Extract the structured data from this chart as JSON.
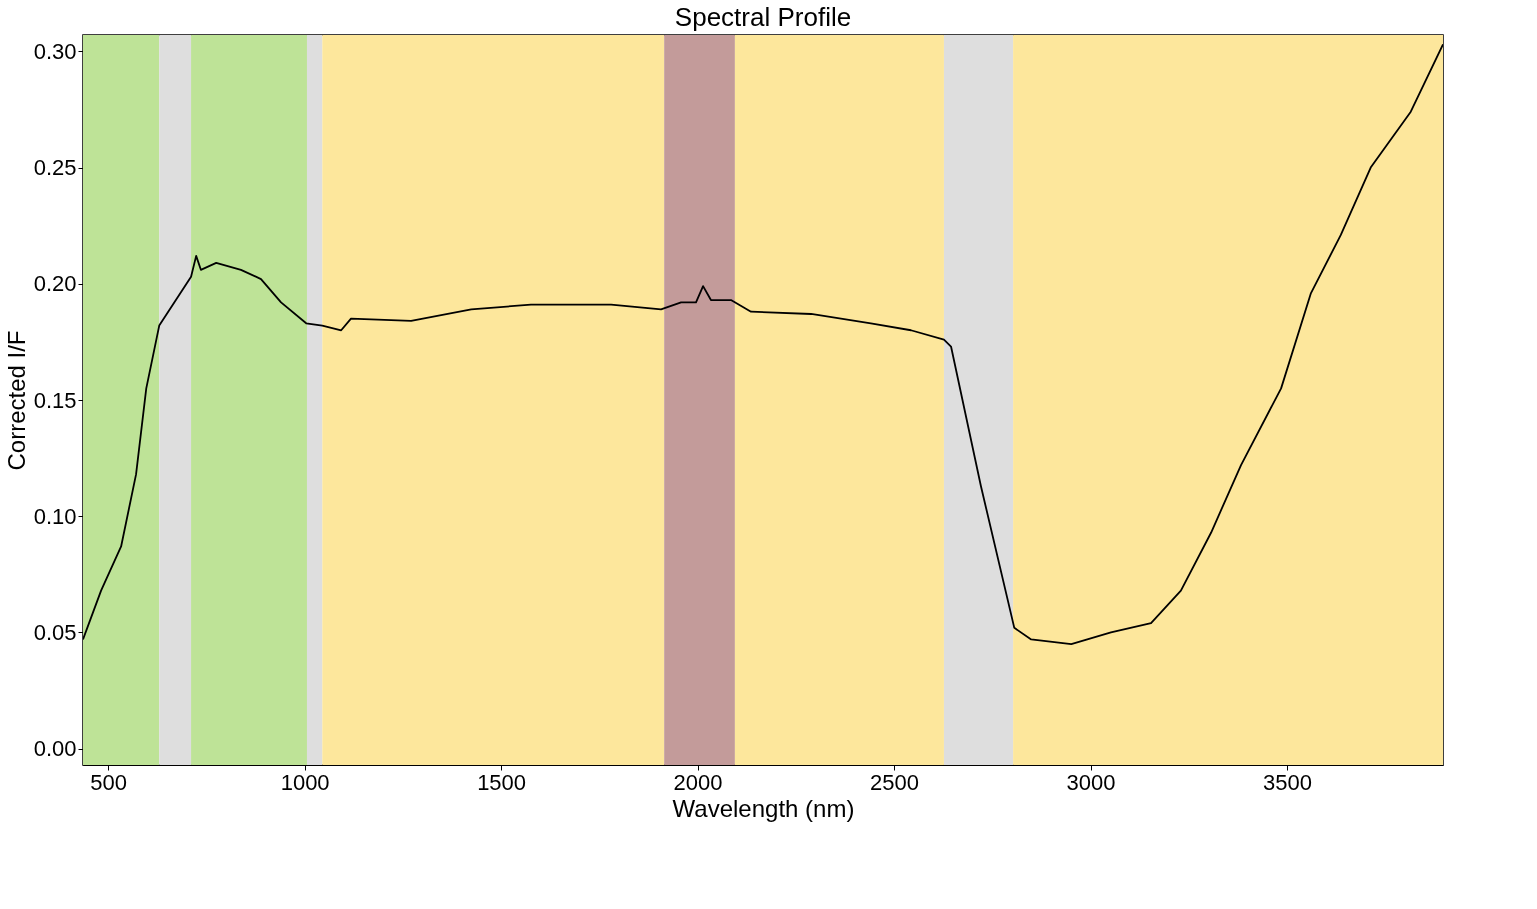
{
  "chart_data": {
    "type": "line",
    "title": "Spectral Profile",
    "xlabel": "Wavelength (nm)",
    "ylabel": "Corrected I/F",
    "xlim": [
      436,
      3897
    ],
    "ylim": [
      -0.007,
      0.307
    ],
    "xticks": [
      500,
      1000,
      1500,
      2000,
      2500,
      3000,
      3500
    ],
    "yticks": [
      {
        "value": 0,
        "label": "0.00"
      },
      {
        "value": 0.05,
        "label": "0.05"
      },
      {
        "value": 0.1,
        "label": "0.10"
      },
      {
        "value": 0.15,
        "label": "0.15"
      },
      {
        "value": 0.2,
        "label": "0.20"
      },
      {
        "value": 0.25,
        "label": "0.25"
      },
      {
        "value": 0.3,
        "label": "0.30"
      }
    ],
    "grid": false,
    "marker": "none",
    "line_style": "solid",
    "series": [
      {
        "color": "#000000",
        "x": [
          436,
          482,
          533,
          571,
          597,
          630,
          711,
          724,
          736,
          775,
          838,
          889,
          940,
          1004,
          1045,
          1093,
          1118,
          1271,
          1424,
          1576,
          1780,
          1907,
          1958,
          1996,
          2014,
          2034,
          2085,
          2136,
          2289,
          2441,
          2543,
          2627,
          2645,
          2721,
          2806,
          2849,
          2951,
          3052,
          3154,
          3230,
          3307,
          3383,
          3485,
          3561,
          3637,
          3713,
          3815,
          3897
        ],
        "values": [
          0.047,
          0.068,
          0.087,
          0.118,
          0.155,
          0.182,
          0.203,
          0.212,
          0.206,
          0.209,
          0.206,
          0.202,
          0.192,
          0.183,
          0.182,
          0.18,
          0.185,
          0.184,
          0.189,
          0.191,
          0.191,
          0.189,
          0.192,
          0.192,
          0.199,
          0.193,
          0.193,
          0.188,
          0.187,
          0.183,
          0.18,
          0.176,
          0.173,
          0.113,
          0.052,
          0.047,
          0.045,
          0.05,
          0.054,
          0.068,
          0.093,
          0.122,
          0.155,
          0.196,
          0.221,
          0.25,
          0.274,
          0.303
        ]
      }
    ],
    "bands": [
      {
        "axis": "x",
        "from": 436,
        "to": 630,
        "color": "#bee397"
      },
      {
        "axis": "x",
        "from": 630,
        "to": 711,
        "color": "#dedede"
      },
      {
        "axis": "x",
        "from": 711,
        "to": 1006,
        "color": "#bee397"
      },
      {
        "axis": "x",
        "from": 1006,
        "to": 1045,
        "color": "#dedede"
      },
      {
        "axis": "x",
        "from": 1045,
        "to": 1915,
        "color": "#fde79c"
      },
      {
        "axis": "x",
        "from": 1915,
        "to": 2095,
        "color": "#c39b9a"
      },
      {
        "axis": "x",
        "from": 2095,
        "to": 2627,
        "color": "#fde79c"
      },
      {
        "axis": "x",
        "from": 2627,
        "to": 2803,
        "color": "#dedede"
      },
      {
        "axis": "x",
        "from": 2803,
        "to": 3897,
        "color": "#fde79c"
      }
    ]
  }
}
